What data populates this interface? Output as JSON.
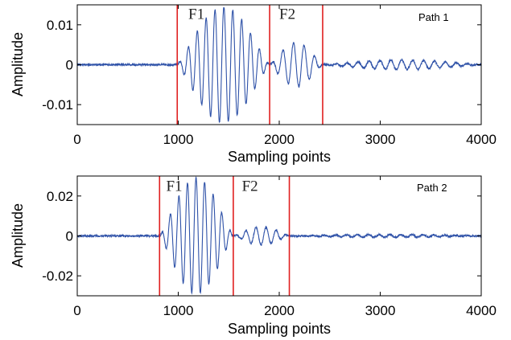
{
  "chart_data": [
    {
      "type": "line",
      "name": "Path 1",
      "path_label": "Path 1",
      "xlabel": "Sampling points",
      "ylabel": "Amplitude",
      "xlim": [
        0,
        4000
      ],
      "ylim": [
        -0.015,
        0.015
      ],
      "xticks": [
        0,
        1000,
        2000,
        3000,
        4000
      ],
      "xtick_labels": [
        "0",
        "1000",
        "2000",
        "3000",
        "4000"
      ],
      "yticks": [
        0.01,
        0,
        -0.01
      ],
      "ytick_labels": [
        "0.01",
        "0",
        "-0.01"
      ],
      "markers": [
        {
          "x": 990
        },
        {
          "x": 1905
        },
        {
          "x": 2430
        }
      ],
      "region_labels": [
        {
          "text": "F1",
          "x": 1180,
          "y": 0.0115
        },
        {
          "text": "F2",
          "x": 2080,
          "y": 0.0115
        }
      ],
      "signal": {
        "noise": 0.0002,
        "segments": [
          {
            "start": 990,
            "end": 1905,
            "peak": 0.0145,
            "period": 88
          },
          {
            "start": 1905,
            "end": 2430,
            "peak": 0.0055,
            "period": 105
          },
          {
            "start": 2430,
            "end": 4000,
            "peak": 0.0012,
            "period": 108
          }
        ]
      },
      "line_color": "#2f52a8",
      "marker_color": "#e02020"
    },
    {
      "type": "line",
      "name": "Path 2",
      "path_label": "Path 2",
      "xlabel": "Sampling points",
      "ylabel": "Amplitude",
      "xlim": [
        0,
        4000
      ],
      "ylim": [
        -0.03,
        0.03
      ],
      "xticks": [
        0,
        1000,
        2000,
        3000,
        4000
      ],
      "xtick_labels": [
        "0",
        "1000",
        "2000",
        "3000",
        "4000"
      ],
      "yticks": [
        0.02,
        0,
        -0.02
      ],
      "ytick_labels": [
        "0.02",
        "0",
        "-0.02"
      ],
      "markers": [
        {
          "x": 815
        },
        {
          "x": 1545
        },
        {
          "x": 2100
        }
      ],
      "region_labels": [
        {
          "text": "F1",
          "x": 960,
          "y": 0.0225
        },
        {
          "text": "F2",
          "x": 1710,
          "y": 0.0225
        }
      ],
      "signal": {
        "noise": 0.0004,
        "segments": [
          {
            "start": 815,
            "end": 1545,
            "peak": 0.029,
            "period": 85
          },
          {
            "start": 1545,
            "end": 2100,
            "peak": 0.0045,
            "period": 100
          },
          {
            "start": 2100,
            "end": 4000,
            "peak": 0.0007,
            "period": 108
          }
        ]
      },
      "line_color": "#2f52a8",
      "marker_color": "#e02020"
    }
  ]
}
